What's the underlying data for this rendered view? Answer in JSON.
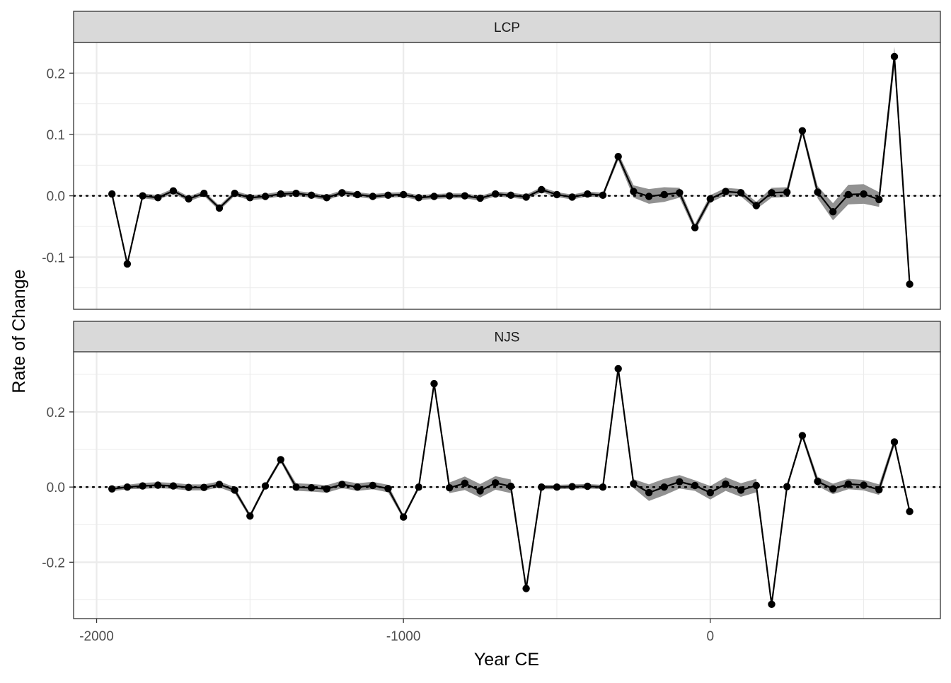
{
  "chart_data": {
    "type": "line",
    "xlabel": "Year CE",
    "ylabel": "Rate of Change",
    "xlim": [
      -2075,
      750
    ],
    "x_ticks": [
      -2000,
      -1000,
      0
    ],
    "x_tick_labels": [
      "-2000",
      "-1000",
      "0"
    ],
    "grid": true,
    "reference_line": 0,
    "colors": {
      "line": "#000000",
      "ribbon": "#8c8c8c",
      "strip": "#d9d9d9",
      "grid": "#ebebeb",
      "panel_border": "#333333"
    },
    "panels": [
      {
        "name": "LCP",
        "ylim": [
          -0.185,
          0.25
        ],
        "y_ticks": [
          -0.1,
          0.0,
          0.1,
          0.2
        ],
        "y_tick_labels": [
          "-0.1",
          "0.0",
          "0.1",
          "0.2"
        ],
        "x": [
          -1950,
          -1900,
          -1850,
          -1800,
          -1750,
          -1700,
          -1650,
          -1600,
          -1550,
          -1500,
          -1450,
          -1400,
          -1350,
          -1300,
          -1250,
          -1200,
          -1150,
          -1100,
          -1050,
          -1000,
          -950,
          -900,
          -850,
          -800,
          -750,
          -700,
          -650,
          -600,
          -550,
          -500,
          -450,
          -400,
          -350,
          -300,
          -250,
          -200,
          -150,
          -100,
          -50,
          0,
          50,
          100,
          150,
          200,
          250,
          300,
          350,
          400,
          450,
          500,
          550,
          600,
          650
        ],
        "y": [
          0.003,
          -0.111,
          0.0,
          -0.003,
          0.008,
          -0.005,
          0.004,
          -0.02,
          0.004,
          -0.003,
          -0.001,
          0.003,
          0.004,
          0.001,
          -0.003,
          0.005,
          0.002,
          -0.001,
          0.001,
          0.002,
          -0.003,
          -0.001,
          0.0,
          0.0,
          -0.004,
          0.003,
          0.001,
          -0.002,
          0.01,
          0.002,
          -0.002,
          0.003,
          0.001,
          0.064,
          0.007,
          -0.001,
          0.002,
          0.005,
          -0.052,
          -0.005,
          0.007,
          0.005,
          -0.016,
          0.005,
          0.006,
          0.106,
          0.006,
          -0.026,
          0.002,
          0.003,
          -0.006,
          0.227,
          -0.144
        ],
        "band_halfwidth": [
          0.004,
          0.004,
          0.004,
          0.004,
          0.004,
          0.004,
          0.004,
          0.004,
          0.004,
          0.004,
          0.004,
          0.004,
          0.004,
          0.004,
          0.004,
          0.004,
          0.004,
          0.004,
          0.004,
          0.004,
          0.004,
          0.004,
          0.004,
          0.004,
          0.004,
          0.004,
          0.004,
          0.004,
          0.004,
          0.004,
          0.004,
          0.004,
          0.004,
          0.006,
          0.01,
          0.012,
          0.012,
          0.008,
          0.006,
          0.006,
          0.006,
          0.006,
          0.006,
          0.008,
          0.008,
          0.006,
          0.01,
          0.014,
          0.016,
          0.016,
          0.012,
          0.016,
          0.006
        ]
      },
      {
        "name": "NJS",
        "ylim": [
          -0.35,
          0.36
        ],
        "y_ticks": [
          -0.2,
          0.0,
          0.2
        ],
        "y_tick_labels": [
          "-0.2",
          "0.0",
          "0.2"
        ],
        "x": [
          -1950,
          -1900,
          -1850,
          -1800,
          -1750,
          -1700,
          -1650,
          -1600,
          -1550,
          -1500,
          -1450,
          -1400,
          -1350,
          -1300,
          -1250,
          -1200,
          -1150,
          -1100,
          -1050,
          -1000,
          -950,
          -900,
          -850,
          -800,
          -750,
          -700,
          -650,
          -600,
          -550,
          -500,
          -450,
          -400,
          -350,
          -300,
          -250,
          -200,
          -150,
          -100,
          -50,
          0,
          50,
          100,
          150,
          200,
          250,
          300,
          350,
          400,
          450,
          500,
          550,
          600,
          650
        ],
        "y": [
          -0.005,
          0.0,
          0.003,
          0.005,
          0.003,
          -0.001,
          -0.001,
          0.007,
          -0.008,
          -0.077,
          0.003,
          0.073,
          0.0,
          -0.002,
          -0.005,
          0.007,
          0.0,
          0.004,
          -0.004,
          -0.08,
          0.0,
          0.275,
          -0.002,
          0.01,
          -0.01,
          0.011,
          0.002,
          -0.27,
          0.0,
          0.0,
          0.001,
          0.002,
          0.0,
          0.315,
          0.009,
          -0.015,
          0.0,
          0.014,
          0.004,
          -0.015,
          0.008,
          -0.008,
          0.004,
          -0.312,
          0.001,
          0.137,
          0.015,
          -0.005,
          0.008,
          0.005,
          -0.007,
          0.12,
          -0.065
        ],
        "band_halfwidth": [
          0.006,
          0.006,
          0.008,
          0.008,
          0.008,
          0.008,
          0.008,
          0.008,
          0.008,
          0.006,
          0.006,
          0.006,
          0.01,
          0.01,
          0.01,
          0.01,
          0.01,
          0.01,
          0.01,
          0.006,
          0.006,
          0.006,
          0.014,
          0.018,
          0.018,
          0.018,
          0.018,
          0.006,
          0.006,
          0.006,
          0.006,
          0.006,
          0.006,
          0.006,
          0.012,
          0.022,
          0.022,
          0.018,
          0.014,
          0.018,
          0.018,
          0.018,
          0.018,
          0.008,
          0.008,
          0.008,
          0.012,
          0.014,
          0.014,
          0.014,
          0.014,
          0.01,
          0.006
        ]
      }
    ]
  }
}
